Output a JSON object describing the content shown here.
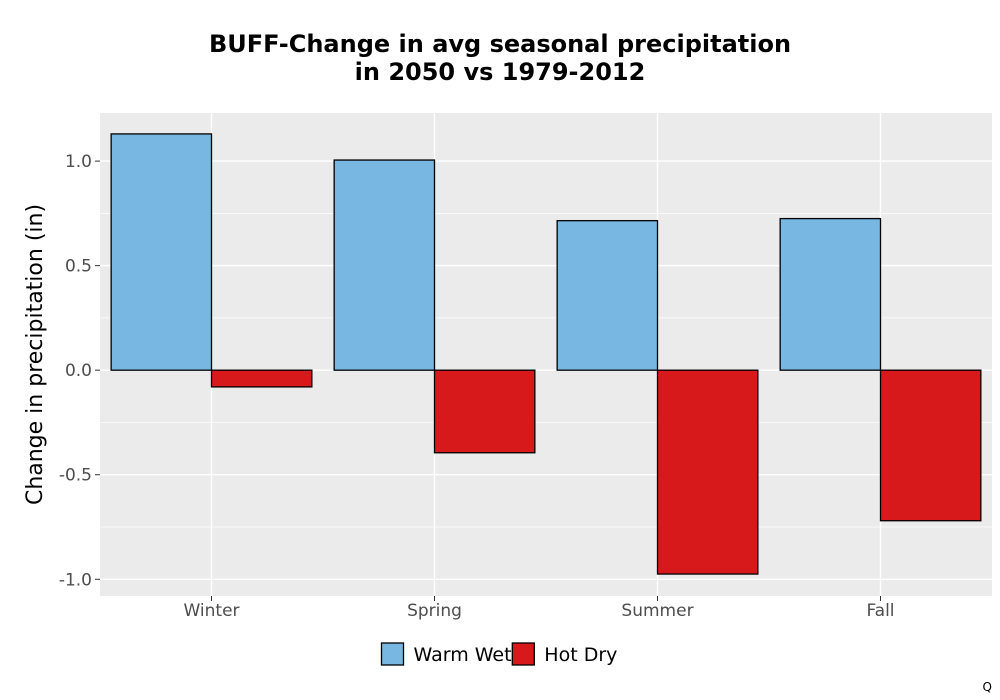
{
  "chart_data": {
    "type": "bar",
    "title_line1": "BUFF-Change in avg seasonal precipitation",
    "title_line2": "in 2050 vs 1979-2012",
    "xlabel": "",
    "ylabel": "Change in precipitation (in)",
    "categories": [
      "Winter",
      "Spring",
      "Summer",
      "Fall"
    ],
    "series": [
      {
        "name": "Warm Wet",
        "color": "#77b7e2",
        "values": [
          1.13,
          1.005,
          0.715,
          0.725
        ]
      },
      {
        "name": "Hot Dry",
        "color": "#d7191c",
        "values": [
          -0.08,
          -0.395,
          -0.975,
          -0.72
        ]
      }
    ],
    "ylim": [
      -1.08,
      1.23
    ],
    "yticks": [
      {
        "value": -1.0,
        "label": "-1.0"
      },
      {
        "value": -0.5,
        "label": "-0.5"
      },
      {
        "value": 0.0,
        "label": "0.0"
      },
      {
        "value": 0.5,
        "label": "0.5"
      },
      {
        "value": 1.0,
        "label": "1.0"
      }
    ],
    "grid": true,
    "panel_color": "#ebebeb",
    "legend_position": "bottom"
  },
  "corner_mark": "Q"
}
